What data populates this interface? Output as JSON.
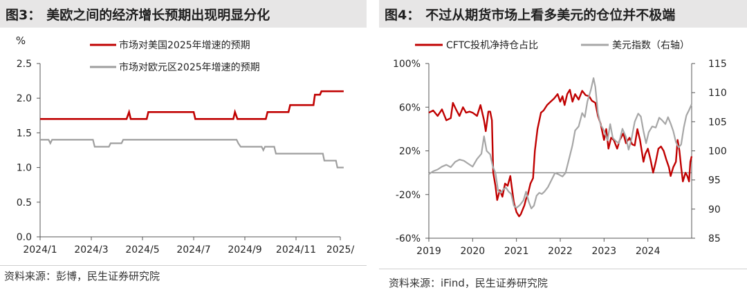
{
  "charts": [
    {
      "title_num": "图3：",
      "title_text": "美欧之间的经济增长预期出现明显分化",
      "source": "资料来源：彭博，民生证券研究院"
    },
    {
      "title_num": "图4：",
      "title_text": "不过从期货市场上看多美元的仓位并不极端",
      "source": "资料来源：iFind，民生证券研究院"
    }
  ],
  "chart_data": [
    {
      "type": "line",
      "title": "美欧之间的经济增长预期出现明显分化",
      "ylabel": "%",
      "ylim": [
        0,
        2.5
      ],
      "yticks": [
        "0.0",
        "0.5",
        "1.0",
        "1.5",
        "2.0",
        "2.5"
      ],
      "xticks": [
        "2024/1",
        "2024/3",
        "2024/5",
        "2024/7",
        "2024/9",
        "2024/11",
        "2025/"
      ],
      "x_range": [
        "2024-01-01",
        "2025-01-10"
      ],
      "grid": false,
      "legend": "top-right",
      "series": [
        {
          "name": "市场对美国2025年增速的预期",
          "color": "#c00000",
          "points": [
            [
              "2024-01-01",
              1.7
            ],
            [
              "2024-04-12",
              1.7
            ],
            [
              "2024-04-15",
              1.8
            ],
            [
              "2024-04-17",
              1.7
            ],
            [
              "2024-05-06",
              1.7
            ],
            [
              "2024-05-08",
              1.8
            ],
            [
              "2024-07-01",
              1.8
            ],
            [
              "2024-07-03",
              1.7
            ],
            [
              "2024-08-18",
              1.7
            ],
            [
              "2024-08-20",
              1.8
            ],
            [
              "2024-08-23",
              1.7
            ],
            [
              "2024-09-26",
              1.7
            ],
            [
              "2024-09-28",
              1.8
            ],
            [
              "2024-10-23",
              1.8
            ],
            [
              "2024-10-25",
              1.9
            ],
            [
              "2024-11-25",
              1.9
            ],
            [
              "2024-11-27",
              2.05
            ],
            [
              "2024-12-04",
              2.05
            ],
            [
              "2024-12-06",
              2.1
            ],
            [
              "2025-01-05",
              2.1
            ]
          ]
        },
        {
          "name": "市场对欧元区2025年增速的预期",
          "color": "#9e9e9e",
          "points": [
            [
              "2024-01-01",
              1.4
            ],
            [
              "2024-01-11",
              1.4
            ],
            [
              "2024-01-13",
              1.35
            ],
            [
              "2024-01-15",
              1.4
            ],
            [
              "2024-03-03",
              1.4
            ],
            [
              "2024-03-05",
              1.3
            ],
            [
              "2024-03-22",
              1.3
            ],
            [
              "2024-03-24",
              1.35
            ],
            [
              "2024-04-06",
              1.35
            ],
            [
              "2024-04-08",
              1.4
            ],
            [
              "2024-08-22",
              1.4
            ],
            [
              "2024-08-24",
              1.35
            ],
            [
              "2024-08-27",
              1.3
            ],
            [
              "2024-09-21",
              1.3
            ],
            [
              "2024-09-23",
              1.25
            ],
            [
              "2024-09-25",
              1.3
            ],
            [
              "2024-10-06",
              1.3
            ],
            [
              "2024-10-08",
              1.2
            ],
            [
              "2024-11-23",
              1.2
            ],
            [
              "2024-11-25",
              1.2
            ],
            [
              "2024-12-08",
              1.2
            ],
            [
              "2024-12-10",
              1.1
            ],
            [
              "2024-12-26",
              1.1
            ],
            [
              "2024-12-28",
              1.0
            ],
            [
              "2025-01-05",
              1.0
            ]
          ]
        }
      ]
    },
    {
      "type": "line",
      "title": "不过从期货市场上看多美元的仓位并不极端",
      "xlim": [
        2019,
        2025
      ],
      "xticks": [
        "2019",
        "2020",
        "2021",
        "2022",
        "2023",
        "2024"
      ],
      "y_left": {
        "lim": [
          -60,
          100
        ],
        "ticks": [
          "-60%",
          "-20%",
          "20%",
          "60%",
          "100%"
        ]
      },
      "y_right": {
        "lim": [
          85,
          115
        ],
        "ticks": [
          "85",
          "90",
          "95",
          "100",
          "105",
          "110",
          "115"
        ]
      },
      "reference_line_left_axis": 0,
      "grid": false,
      "legend": "top",
      "series": [
        {
          "name": "CFTC投机净持仓占比",
          "axis": "left",
          "color": "#c00000",
          "points": [
            [
              2019.0,
              55
            ],
            [
              2019.1,
              57
            ],
            [
              2019.2,
              52
            ],
            [
              2019.3,
              58
            ],
            [
              2019.4,
              48
            ],
            [
              2019.5,
              50
            ],
            [
              2019.55,
              64
            ],
            [
              2019.62,
              58
            ],
            [
              2019.7,
              52
            ],
            [
              2019.78,
              60
            ],
            [
              2019.85,
              55
            ],
            [
              2019.93,
              56
            ],
            [
              2020.0,
              55
            ],
            [
              2020.1,
              52
            ],
            [
              2020.18,
              62
            ],
            [
              2020.26,
              48
            ],
            [
              2020.3,
              38
            ],
            [
              2020.36,
              56
            ],
            [
              2020.4,
              56
            ],
            [
              2020.44,
              48
            ],
            [
              2020.47,
              0
            ],
            [
              2020.52,
              -12
            ],
            [
              2020.56,
              -25
            ],
            [
              2020.62,
              -16
            ],
            [
              2020.68,
              -22
            ],
            [
              2020.74,
              -10
            ],
            [
              2020.8,
              -12
            ],
            [
              2020.86,
              -3
            ],
            [
              2020.9,
              -15
            ],
            [
              2020.94,
              -27
            ],
            [
              2021.0,
              -36
            ],
            [
              2021.06,
              -40
            ],
            [
              2021.1,
              -38
            ],
            [
              2021.14,
              -34
            ],
            [
              2021.18,
              -30
            ],
            [
              2021.22,
              -24
            ],
            [
              2021.26,
              -20
            ],
            [
              2021.32,
              -10
            ],
            [
              2021.38,
              -5
            ],
            [
              2021.42,
              20
            ],
            [
              2021.48,
              40
            ],
            [
              2021.56,
              55
            ],
            [
              2021.62,
              57
            ],
            [
              2021.7,
              62
            ],
            [
              2021.78,
              65
            ],
            [
              2021.86,
              68
            ],
            [
              2021.94,
              72
            ],
            [
              2022.0,
              65
            ],
            [
              2022.05,
              70
            ],
            [
              2022.1,
              62
            ],
            [
              2022.16,
              72
            ],
            [
              2022.22,
              76
            ],
            [
              2022.28,
              65
            ],
            [
              2022.34,
              72
            ],
            [
              2022.42,
              67
            ],
            [
              2022.5,
              75
            ],
            [
              2022.58,
              71
            ],
            [
              2022.66,
              70
            ],
            [
              2022.72,
              66
            ],
            [
              2022.8,
              64
            ],
            [
              2022.86,
              52
            ],
            [
              2022.92,
              45
            ],
            [
              2023.0,
              30
            ],
            [
              2023.05,
              40
            ],
            [
              2023.1,
              22
            ],
            [
              2023.16,
              32
            ],
            [
              2023.22,
              30
            ],
            [
              2023.3,
              22
            ],
            [
              2023.36,
              30
            ],
            [
              2023.44,
              36
            ],
            [
              2023.5,
              27
            ],
            [
              2023.58,
              32
            ],
            [
              2023.64,
              26
            ],
            [
              2023.7,
              25
            ],
            [
              2023.76,
              40
            ],
            [
              2023.82,
              30
            ],
            [
              2023.86,
              20
            ],
            [
              2023.9,
              10
            ],
            [
              2023.94,
              17
            ],
            [
              2024.0,
              22
            ],
            [
              2024.06,
              12
            ],
            [
              2024.12,
              0
            ],
            [
              2024.18,
              10
            ],
            [
              2024.24,
              22
            ],
            [
              2024.3,
              24
            ],
            [
              2024.36,
              20
            ],
            [
              2024.42,
              12
            ],
            [
              2024.48,
              5
            ],
            [
              2024.52,
              -3
            ],
            [
              2024.58,
              5
            ],
            [
              2024.64,
              10
            ],
            [
              2024.68,
              30
            ],
            [
              2024.72,
              20
            ],
            [
              2024.76,
              5
            ],
            [
              2024.8,
              -8
            ],
            [
              2024.86,
              0
            ],
            [
              2024.9,
              -3
            ],
            [
              2024.94,
              -8
            ],
            [
              2024.97,
              10
            ],
            [
              2025.0,
              15
            ]
          ]
        },
        {
          "name": "美元指数（右轴）",
          "axis": "right",
          "color": "#a6a6a6",
          "points": [
            [
              2019.0,
              96.0
            ],
            [
              2019.1,
              96.5
            ],
            [
              2019.2,
              96.8
            ],
            [
              2019.3,
              97.3
            ],
            [
              2019.4,
              97.6
            ],
            [
              2019.5,
              97.2
            ],
            [
              2019.6,
              98.1
            ],
            [
              2019.7,
              98.5
            ],
            [
              2019.8,
              98.3
            ],
            [
              2019.9,
              97.8
            ],
            [
              2020.0,
              97.3
            ],
            [
              2020.1,
              98.6
            ],
            [
              2020.2,
              99.5
            ],
            [
              2020.26,
              102.5
            ],
            [
              2020.32,
              100.0
            ],
            [
              2020.4,
              99.4
            ],
            [
              2020.46,
              97.3
            ],
            [
              2020.52,
              96.2
            ],
            [
              2020.58,
              93.2
            ],
            [
              2020.64,
              92.8
            ],
            [
              2020.7,
              93.4
            ],
            [
              2020.76,
              93.7
            ],
            [
              2020.82,
              93.0
            ],
            [
              2020.88,
              92.6
            ],
            [
              2020.94,
              90.6
            ],
            [
              2021.0,
              90.2
            ],
            [
              2021.08,
              90.7
            ],
            [
              2021.16,
              91.5
            ],
            [
              2021.22,
              93.0
            ],
            [
              2021.28,
              91.3
            ],
            [
              2021.34,
              90.1
            ],
            [
              2021.4,
              90.6
            ],
            [
              2021.46,
              92.3
            ],
            [
              2021.52,
              92.8
            ],
            [
              2021.58,
              92.6
            ],
            [
              2021.64,
              93.0
            ],
            [
              2021.72,
              93.8
            ],
            [
              2021.8,
              95.0
            ],
            [
              2021.88,
              96.2
            ],
            [
              2021.95,
              96.0
            ],
            [
              2022.05,
              95.6
            ],
            [
              2022.12,
              96.2
            ],
            [
              2022.2,
              98.6
            ],
            [
              2022.28,
              101.0
            ],
            [
              2022.34,
              103.5
            ],
            [
              2022.42,
              104.2
            ],
            [
              2022.5,
              106.5
            ],
            [
              2022.56,
              105.8
            ],
            [
              2022.62,
              108.5
            ],
            [
              2022.7,
              110.5
            ],
            [
              2022.76,
              112.5
            ],
            [
              2022.8,
              111.0
            ],
            [
              2022.86,
              106.5
            ],
            [
              2022.92,
              104.5
            ],
            [
              2023.0,
              103.5
            ],
            [
              2023.08,
              101.8
            ],
            [
              2023.14,
              104.6
            ],
            [
              2023.2,
              102.2
            ],
            [
              2023.28,
              101.6
            ],
            [
              2023.34,
              101.3
            ],
            [
              2023.42,
              103.8
            ],
            [
              2023.5,
              102.4
            ],
            [
              2023.56,
              100.2
            ],
            [
              2023.62,
              101.8
            ],
            [
              2023.7,
              105.0
            ],
            [
              2023.78,
              106.4
            ],
            [
              2023.84,
              105.9
            ],
            [
              2023.9,
              103.4
            ],
            [
              2023.96,
              101.3
            ],
            [
              2024.02,
              103.2
            ],
            [
              2024.1,
              104.2
            ],
            [
              2024.18,
              104.0
            ],
            [
              2024.26,
              105.7
            ],
            [
              2024.32,
              105.3
            ],
            [
              2024.4,
              104.6
            ],
            [
              2024.46,
              105.8
            ],
            [
              2024.52,
              104.7
            ],
            [
              2024.58,
              103.4
            ],
            [
              2024.64,
              101.5
            ],
            [
              2024.7,
              100.6
            ],
            [
              2024.76,
              101.1
            ],
            [
              2024.82,
              104.0
            ],
            [
              2024.88,
              106.1
            ],
            [
              2024.94,
              107.0
            ],
            [
              2025.0,
              108.0
            ]
          ]
        }
      ]
    }
  ]
}
